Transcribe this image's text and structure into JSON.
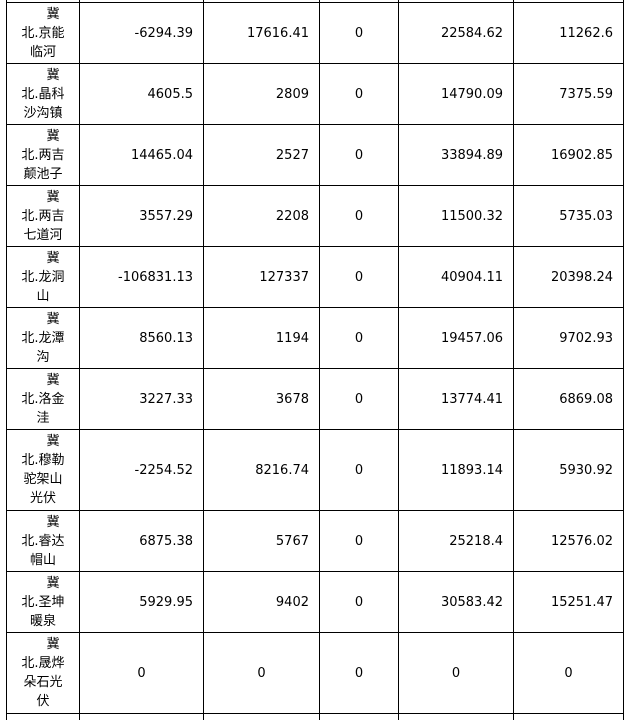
{
  "rows": [
    {
      "name": [
        "冀",
        "北.京能",
        "临河"
      ],
      "values": [
        "-6294.39",
        "17616.41",
        "0",
        "22584.62",
        "11262.6"
      ]
    },
    {
      "name": [
        "冀",
        "北.晶科",
        "沙沟镇"
      ],
      "values": [
        "4605.5",
        "2809",
        "0",
        "14790.09",
        "7375.59"
      ]
    },
    {
      "name": [
        "冀",
        "北.两吉",
        "颠池子"
      ],
      "values": [
        "14465.04",
        "2527",
        "0",
        "33894.89",
        "16902.85"
      ]
    },
    {
      "name": [
        "冀",
        "北.两吉",
        "七道河"
      ],
      "values": [
        "3557.29",
        "2208",
        "0",
        "11500.32",
        "5735.03"
      ]
    },
    {
      "name": [
        "冀",
        "北.龙洞",
        "山"
      ],
      "values": [
        "-106831.13",
        "127337",
        "0",
        "40904.11",
        "20398.24"
      ]
    },
    {
      "name": [
        "冀",
        "北.龙潭",
        "沟"
      ],
      "values": [
        "8560.13",
        "1194",
        "0",
        "19457.06",
        "9702.93"
      ]
    },
    {
      "name": [
        "冀",
        "北.洛金",
        "洼"
      ],
      "values": [
        "3227.33",
        "3678",
        "0",
        "13774.41",
        "6869.08"
      ]
    },
    {
      "name": [
        "冀",
        "北.穆勒",
        "驼架山",
        "光伏"
      ],
      "values": [
        "-2254.52",
        "8216.74",
        "0",
        "11893.14",
        "5930.92"
      ]
    },
    {
      "name": [
        "冀",
        "北.睿达",
        "帽山"
      ],
      "values": [
        "6875.38",
        "5767",
        "0",
        "25218.4",
        "12576.02"
      ]
    },
    {
      "name": [
        "冀",
        "北.圣坤",
        "暖泉"
      ],
      "values": [
        "5929.95",
        "9402",
        "0",
        "30583.42",
        "15251.47"
      ]
    },
    {
      "name": [
        "冀",
        "北.晟烨",
        "朵石光",
        "伏"
      ],
      "values": [
        "0",
        "0",
        "0",
        "0",
        "0"
      ]
    }
  ]
}
